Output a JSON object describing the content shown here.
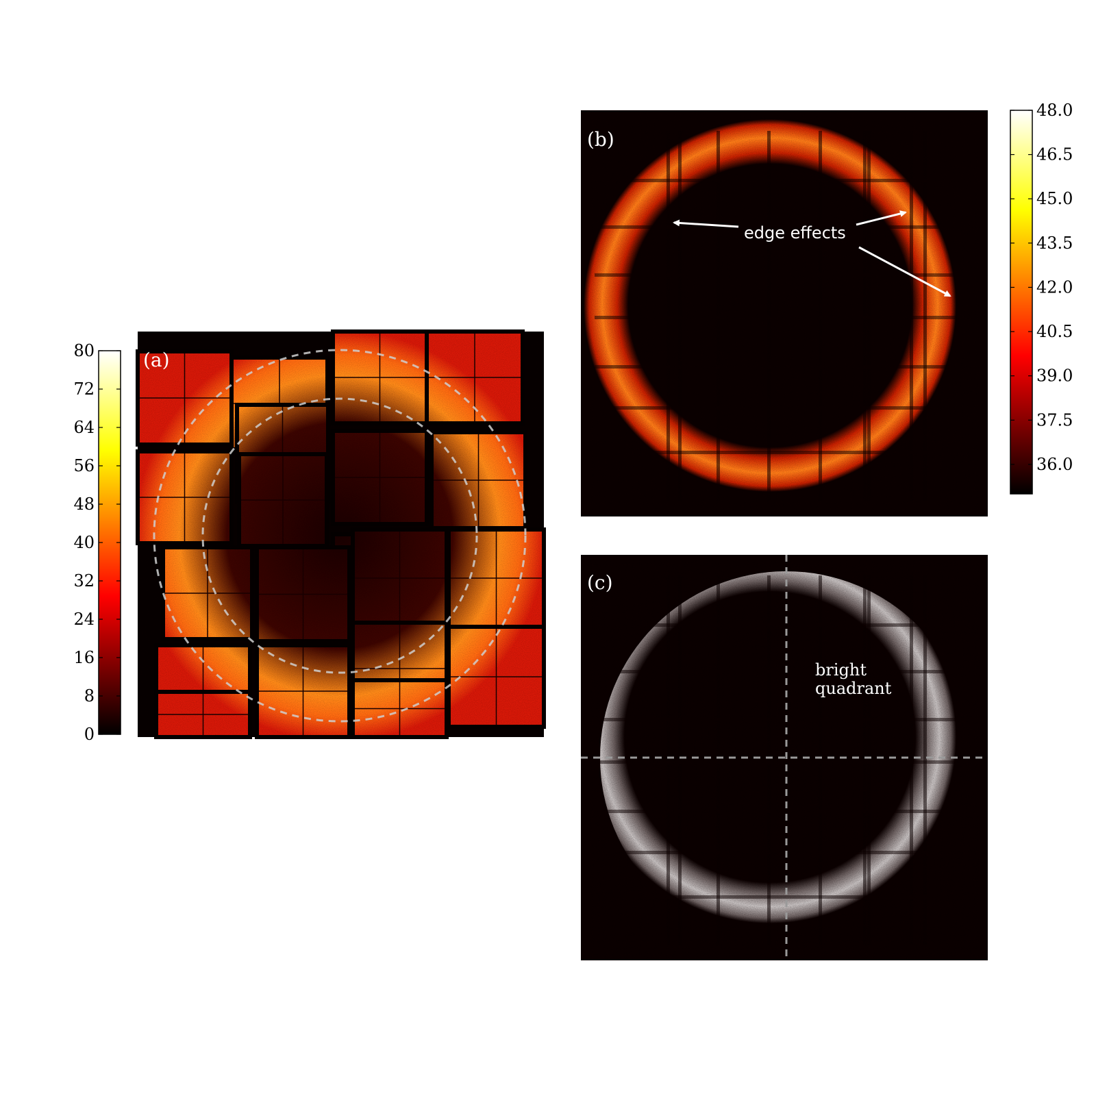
{
  "chart_data": [
    {
      "type": "heatmap",
      "panel_label": "(a)",
      "colormap": "hot",
      "colorbar": {
        "ticks": [
          "0",
          "8",
          "16",
          "24",
          "32",
          "40",
          "48",
          "56",
          "64",
          "72",
          "80"
        ],
        "range": [
          0,
          80
        ],
        "side": "left"
      },
      "annotations": [],
      "overlay": "two dashed circles (inner and outer ring boundaries)"
    },
    {
      "type": "heatmap",
      "panel_label": "(b)",
      "colormap": "hot",
      "colorbar": {
        "ticks": [
          "36.0",
          "37.5",
          "39.0",
          "40.5",
          "42.0",
          "43.5",
          "45.0",
          "46.5",
          "48.0"
        ],
        "range": [
          35.0,
          48.0
        ],
        "side": "right"
      },
      "annotations": [
        {
          "text": "edge effects",
          "arrows": 3
        }
      ]
    },
    {
      "type": "heatmap",
      "panel_label": "(c)",
      "colormap": "binary-white-on-black",
      "annotations": [
        {
          "text_lines": [
            "bright",
            "quadrant"
          ]
        }
      ],
      "overlay": "dashed crosshair through detector center"
    }
  ],
  "colors": {
    "background_dark": "#0b0000",
    "tile_dark": "#2a0200",
    "ring_orange": "#ff7a10",
    "tile_red": "#d81a08",
    "dashed_line": "#cccccc",
    "annotation_white": "#ffffff"
  }
}
